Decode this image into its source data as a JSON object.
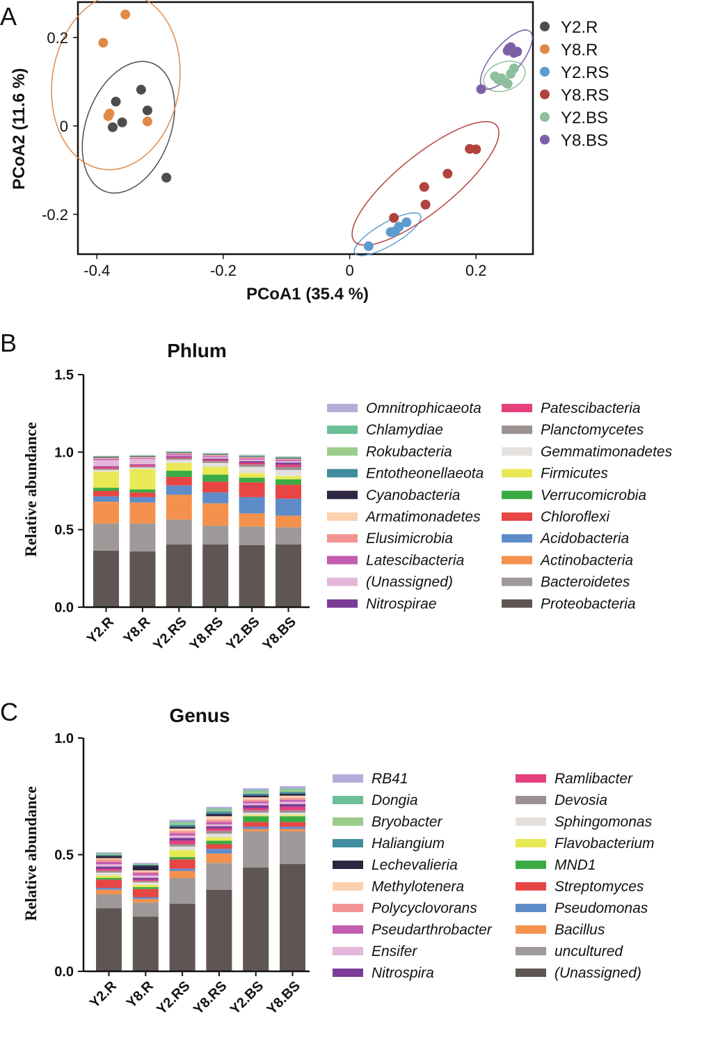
{
  "panel_labels": {
    "a": "A",
    "b": "B",
    "c": "C"
  },
  "colors": {
    "Y2.R": "#4d4d4d",
    "Y8.R": "#e08a4a",
    "Y2.RS": "#5b9bd0",
    "Y8.RS": "#b2423c",
    "Y2.BS": "#8fbf9d",
    "Y8.BS": "#7d5fa8"
  },
  "chart_data": [
    {
      "type": "scatter",
      "xlabel": "PCoA1 (35.4 %)",
      "ylabel": "PCoA2 (11.6 %)",
      "xlim": [
        -0.43,
        0.29
      ],
      "ylim": [
        -0.29,
        0.28
      ],
      "x_ticks": [
        -0.4,
        -0.2,
        0,
        0.2
      ],
      "x_tick_labels": [
        "-0.4",
        "-0.2",
        "0",
        "0.2"
      ],
      "y_ticks": [
        -0.2,
        0,
        0.2
      ],
      "y_tick_labels": [
        "-0.2",
        "0",
        "0.2"
      ],
      "grid": false,
      "legend_position": "right",
      "series": [
        {
          "name": "Y2.R",
          "color": "#4d4d4d",
          "points": [
            [
              -0.37,
              0.055
            ],
            [
              -0.36,
              0.008
            ],
            [
              -0.375,
              -0.003
            ],
            [
              -0.32,
              0.035
            ],
            [
              -0.33,
              0.082
            ],
            [
              -0.29,
              -0.117
            ]
          ],
          "ellipse": {
            "cx": -0.35,
            "cy": -0.003,
            "rx": 0.108,
            "ry": 0.03,
            "angle": -70
          }
        },
        {
          "name": "Y8.R",
          "color": "#e08a4a",
          "points": [
            [
              -0.39,
              0.188
            ],
            [
              -0.355,
              0.252
            ],
            [
              -0.38,
              0.028
            ],
            [
              -0.382,
              0.022
            ],
            [
              -0.32,
              0.01
            ]
          ],
          "ellipse": {
            "cx": -0.37,
            "cy": 0.1,
            "rx": 0.14,
            "ry": 0.045,
            "angle": -81
          }
        },
        {
          "name": "Y2.RS",
          "color": "#5b9bd0",
          "points": [
            [
              0.03,
              -0.272
            ],
            [
              0.065,
              -0.24
            ],
            [
              0.072,
              -0.238
            ],
            [
              0.078,
              -0.228
            ],
            [
              0.09,
              -0.218
            ],
            [
              0.07,
              -0.24
            ]
          ],
          "ellipse": {
            "cx": 0.06,
            "cy": -0.245,
            "rx": 0.06,
            "ry": 0.008,
            "angle": -30
          }
        },
        {
          "name": "Y8.RS",
          "color": "#b2423c",
          "points": [
            [
              0.07,
              -0.208
            ],
            [
              0.12,
              -0.178
            ],
            [
              0.118,
              -0.138
            ],
            [
              0.155,
              -0.108
            ],
            [
              0.19,
              -0.052
            ],
            [
              0.2,
              -0.053
            ]
          ],
          "ellipse": {
            "cx": 0.12,
            "cy": -0.13,
            "rx": 0.145,
            "ry": 0.02,
            "angle": -39
          }
        },
        {
          "name": "Y2.BS",
          "color": "#8fbf9d",
          "points": [
            [
              0.23,
              0.112
            ],
            [
              0.24,
              0.108
            ],
            [
              0.245,
              0.1
            ],
            [
              0.25,
              0.095
            ],
            [
              0.26,
              0.13
            ],
            [
              0.255,
              0.118
            ],
            [
              0.235,
              0.105
            ]
          ],
          "ellipse": {
            "cx": 0.245,
            "cy": 0.112,
            "rx": 0.034,
            "ry": 0.01,
            "angle": -20
          }
        },
        {
          "name": "Y8.BS",
          "color": "#7d5fa8",
          "points": [
            [
              0.25,
              0.17
            ],
            [
              0.255,
              0.178
            ],
            [
              0.26,
              0.165
            ],
            [
              0.265,
              0.168
            ],
            [
              0.252,
              0.175
            ],
            [
              0.208,
              0.083
            ]
          ],
          "ellipse": {
            "cx": 0.248,
            "cy": 0.15,
            "rx": 0.058,
            "ry": 0.01,
            "angle": -50
          }
        }
      ]
    },
    {
      "type": "bar",
      "stacked": true,
      "title": "Phlum",
      "ylabel": "Relative abundance",
      "ylim": [
        0,
        1.5
      ],
      "y_ticks": [
        0,
        0.5,
        1.0,
        1.5
      ],
      "y_tick_labels": [
        "0.0",
        "0.5",
        "1.0",
        "1.5"
      ],
      "categories": [
        "Y2.R",
        "Y8.R",
        "Y2.RS",
        "Y8.RS",
        "Y2.BS",
        "Y8.BS"
      ],
      "series": [
        {
          "name": "Proteobacteria",
          "color": "#5f5653",
          "values": [
            0.365,
            0.36,
            0.405,
            0.405,
            0.4,
            0.405
          ]
        },
        {
          "name": "Bacteroidetes",
          "color": "#9e9898",
          "values": [
            0.175,
            0.18,
            0.16,
            0.12,
            0.12,
            0.11
          ]
        },
        {
          "name": "Actinobacteria",
          "color": "#f4924d",
          "values": [
            0.14,
            0.135,
            0.16,
            0.145,
            0.085,
            0.075
          ]
        },
        {
          "name": "Acidobacteria",
          "color": "#5e8cc9",
          "values": [
            0.035,
            0.035,
            0.06,
            0.07,
            0.105,
            0.11
          ]
        },
        {
          "name": "Chloroflexi",
          "color": "#e84545",
          "values": [
            0.035,
            0.03,
            0.055,
            0.07,
            0.095,
            0.09
          ]
        },
        {
          "name": "Verrucomicrobia",
          "color": "#3aab44",
          "values": [
            0.02,
            0.02,
            0.04,
            0.045,
            0.03,
            0.035
          ]
        },
        {
          "name": "Firmicutes",
          "color": "#e9e955",
          "values": [
            0.105,
            0.13,
            0.05,
            0.05,
            0.03,
            0.02
          ]
        },
        {
          "name": "Gemmatimonadetes",
          "color": "#e4e1de",
          "values": [
            0.01,
            0.01,
            0.02,
            0.025,
            0.04,
            0.04
          ]
        },
        {
          "name": "Planctomycetes",
          "color": "#9b9191",
          "values": [
            0.008,
            0.008,
            0.01,
            0.012,
            0.015,
            0.02
          ]
        },
        {
          "name": "Patescibacteria",
          "color": "#e63f7d",
          "values": [
            0.012,
            0.01,
            0.008,
            0.008,
            0.012,
            0.015
          ]
        },
        {
          "name": "Nitrospirae",
          "color": "#7a3c97",
          "values": [
            0.004,
            0.004,
            0.006,
            0.008,
            0.01,
            0.012
          ]
        },
        {
          "name": "(Unassigned)",
          "color": "#e4b7da",
          "values": [
            0.04,
            0.035,
            0.005,
            0.01,
            0.01,
            0.01
          ]
        },
        {
          "name": "Latescibacteria",
          "color": "#c25db0",
          "values": [
            0.008,
            0.005,
            0.008,
            0.006,
            0.008,
            0.008
          ]
        },
        {
          "name": "Elusimicrobia",
          "color": "#f49393",
          "values": [
            0.003,
            0.003,
            0.003,
            0.004,
            0.004,
            0.004
          ]
        },
        {
          "name": "Armatimonadetes",
          "color": "#fdd0ae",
          "values": [
            0.004,
            0.004,
            0.004,
            0.004,
            0.004,
            0.004
          ]
        },
        {
          "name": "Cyanobacteria",
          "color": "#2d2541",
          "values": [
            0.004,
            0.004,
            0.003,
            0.003,
            0.003,
            0.003
          ]
        },
        {
          "name": "Entotheonellaeota",
          "color": "#428c9f",
          "values": [
            0.002,
            0.002,
            0.003,
            0.003,
            0.004,
            0.004
          ]
        },
        {
          "name": "Rokubacteria",
          "color": "#9acd8b",
          "values": [
            0.002,
            0.002,
            0.003,
            0.003,
            0.004,
            0.004
          ]
        },
        {
          "name": "Chlamydiae",
          "color": "#6bbf95",
          "values": [
            0.002,
            0.002,
            0.002,
            0.002,
            0.002,
            0.002
          ]
        },
        {
          "name": "Omnitrophicaeota",
          "color": "#b6addb",
          "values": [
            0.002,
            0.002,
            0.002,
            0.002,
            0.002,
            0.002
          ]
        }
      ],
      "legend_columns": [
        [
          "Omnitrophicaeota",
          "Chlamydiae",
          "Rokubacteria",
          "Entotheonellaeota",
          "Cyanobacteria",
          "Armatimonadetes",
          "Elusimicrobia",
          "Latescibacteria",
          "(Unassigned)",
          "Nitrospirae"
        ],
        [
          "Patescibacteria",
          "Planctomycetes",
          "Gemmatimonadetes",
          "Firmicutes",
          "Verrucomicrobia",
          "Chloroflexi",
          "Acidobacteria",
          "Actinobacteria",
          "Bacteroidetes",
          "Proteobacteria"
        ]
      ]
    },
    {
      "type": "bar",
      "stacked": true,
      "title": "Genus",
      "ylabel": "Relative abundance",
      "ylim": [
        0,
        1.0
      ],
      "y_ticks": [
        0,
        0.5,
        1.0
      ],
      "y_tick_labels": [
        "0.0",
        "0.5",
        "1.0"
      ],
      "categories": [
        "Y2.R",
        "Y8.R",
        "Y2.RS",
        "Y8.RS",
        "Y2.BS",
        "Y8.BS"
      ],
      "series": [
        {
          "name": "(Unassigned)",
          "color": "#5f5653",
          "values": [
            0.27,
            0.235,
            0.29,
            0.35,
            0.445,
            0.46
          ]
        },
        {
          "name": "uncultured",
          "color": "#9e9898",
          "values": [
            0.06,
            0.06,
            0.11,
            0.115,
            0.155,
            0.14
          ]
        },
        {
          "name": "Bacillus",
          "color": "#f4924d",
          "values": [
            0.02,
            0.015,
            0.03,
            0.04,
            0.01,
            0.01
          ]
        },
        {
          "name": "Pseudomonas",
          "color": "#5e8cc9",
          "values": [
            0.008,
            0.008,
            0.01,
            0.02,
            0.01,
            0.01
          ]
        },
        {
          "name": "Streptomyces",
          "color": "#e84545",
          "values": [
            0.035,
            0.035,
            0.04,
            0.02,
            0.02,
            0.02
          ]
        },
        {
          "name": "MND1",
          "color": "#3aab44",
          "values": [
            0.008,
            0.008,
            0.01,
            0.015,
            0.025,
            0.025
          ]
        },
        {
          "name": "Flavobacterium",
          "color": "#e9e955",
          "values": [
            0.01,
            0.01,
            0.03,
            0.015,
            0.005,
            0.005
          ]
        },
        {
          "name": "Sphingomonas",
          "color": "#e4e1de",
          "values": [
            0.012,
            0.01,
            0.015,
            0.015,
            0.01,
            0.01
          ]
        },
        {
          "name": "Devosia",
          "color": "#9b9191",
          "values": [
            0.008,
            0.006,
            0.01,
            0.012,
            0.01,
            0.01
          ]
        },
        {
          "name": "Ramlibacter",
          "color": "#e63f7d",
          "values": [
            0.008,
            0.006,
            0.015,
            0.01,
            0.01,
            0.015
          ]
        },
        {
          "name": "Nitrospira",
          "color": "#7a3c97",
          "values": [
            0.01,
            0.008,
            0.012,
            0.01,
            0.012,
            0.012
          ]
        },
        {
          "name": "Ensifer",
          "color": "#e4b7da",
          "values": [
            0.01,
            0.01,
            0.01,
            0.008,
            0.008,
            0.01
          ]
        },
        {
          "name": "Pseudarthrobacter",
          "color": "#c25db0",
          "values": [
            0.01,
            0.01,
            0.01,
            0.01,
            0.008,
            0.008
          ]
        },
        {
          "name": "Polycyclovorans",
          "color": "#f49393",
          "values": [
            0.01,
            0.006,
            0.01,
            0.01,
            0.008,
            0.008
          ]
        },
        {
          "name": "Methylotenera",
          "color": "#fdd0ae",
          "values": [
            0.006,
            0.006,
            0.01,
            0.015,
            0.01,
            0.01
          ]
        },
        {
          "name": "Lechevalieria",
          "color": "#2d2541",
          "values": [
            0.01,
            0.02,
            0.008,
            0.01,
            0.008,
            0.008
          ]
        },
        {
          "name": "Haliangium",
          "color": "#428c9f",
          "values": [
            0.004,
            0.004,
            0.008,
            0.01,
            0.008,
            0.008
          ]
        },
        {
          "name": "Bryobacter",
          "color": "#9acd8b",
          "values": [
            0.004,
            0.002,
            0.008,
            0.008,
            0.01,
            0.01
          ]
        },
        {
          "name": "Dongia",
          "color": "#6bbf95",
          "values": [
            0.003,
            0.002,
            0.005,
            0.005,
            0.005,
            0.005
          ]
        },
        {
          "name": "RB41",
          "color": "#b6addb",
          "values": [
            0.004,
            0.004,
            0.009,
            0.007,
            0.008,
            0.01
          ]
        }
      ],
      "legend_columns": [
        [
          "RB41",
          "Dongia",
          "Bryobacter",
          "Haliangium",
          "Lechevalieria",
          "Methylotenera",
          "Polycyclovorans",
          "Pseudarthrobacter",
          "Ensifer",
          "Nitrospira"
        ],
        [
          "Ramlibacter",
          "Devosia",
          "Sphingomonas",
          "Flavobacterium",
          "MND1",
          "Streptomyces",
          "Pseudomonas",
          "Bacillus",
          "uncultured",
          "(Unassigned)"
        ]
      ]
    }
  ]
}
